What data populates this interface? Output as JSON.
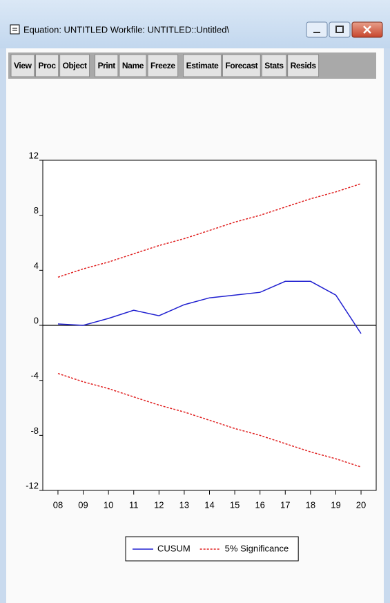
{
  "window": {
    "title": "Equation: UNTITLED   Workfile: UNTITLED::Untitled\\"
  },
  "toolbar": {
    "groups": [
      [
        "View",
        "Proc",
        "Object"
      ],
      [
        "Print",
        "Name",
        "Freeze"
      ],
      [
        "Estimate",
        "Forecast",
        "Stats",
        "Resids"
      ]
    ]
  },
  "chart_data": {
    "type": "line",
    "x": [
      2008,
      2009,
      2010,
      2011,
      2012,
      2013,
      2014,
      2015,
      2016,
      2017,
      2018,
      2019,
      2020
    ],
    "series": [
      {
        "name": "CUSUM",
        "color": "#2020d0",
        "linestyle": "solid",
        "values": [
          0.1,
          0.0,
          0.5,
          1.1,
          0.7,
          1.5,
          2.0,
          2.2,
          2.4,
          3.2,
          3.2,
          2.2,
          -0.6
        ]
      },
      {
        "name": "5% Significance",
        "color": "#e02020",
        "linestyle": "dashed",
        "values": [
          3.5,
          4.1,
          4.6,
          5.2,
          5.8,
          6.3,
          6.9,
          7.5,
          8.0,
          8.6,
          9.2,
          9.7,
          10.3
        ],
        "lower": [
          -3.5,
          -4.1,
          -4.6,
          -5.2,
          -5.8,
          -6.3,
          -6.9,
          -7.5,
          -8.0,
          -8.6,
          -9.2,
          -9.7,
          -10.3
        ]
      }
    ],
    "xlim": [
      2007.4,
      2020.6
    ],
    "xticks": [
      {
        "value": 2008,
        "label": "08"
      },
      {
        "value": 2009,
        "label": "09"
      },
      {
        "value": 2010,
        "label": "10"
      },
      {
        "value": 2011,
        "label": "11"
      },
      {
        "value": 2012,
        "label": "12"
      },
      {
        "value": 2013,
        "label": "13"
      },
      {
        "value": 2014,
        "label": "14"
      },
      {
        "value": 2015,
        "label": "15"
      },
      {
        "value": 2016,
        "label": "16"
      },
      {
        "value": 2017,
        "label": "17"
      },
      {
        "value": 2018,
        "label": "18"
      },
      {
        "value": 2019,
        "label": "19"
      },
      {
        "value": 2020,
        "label": "20"
      }
    ],
    "ylim": [
      -12,
      12
    ],
    "yticks": [
      -12,
      -8,
      -4,
      0,
      4,
      8,
      12
    ],
    "zero_line": true,
    "legend": "bottom"
  }
}
